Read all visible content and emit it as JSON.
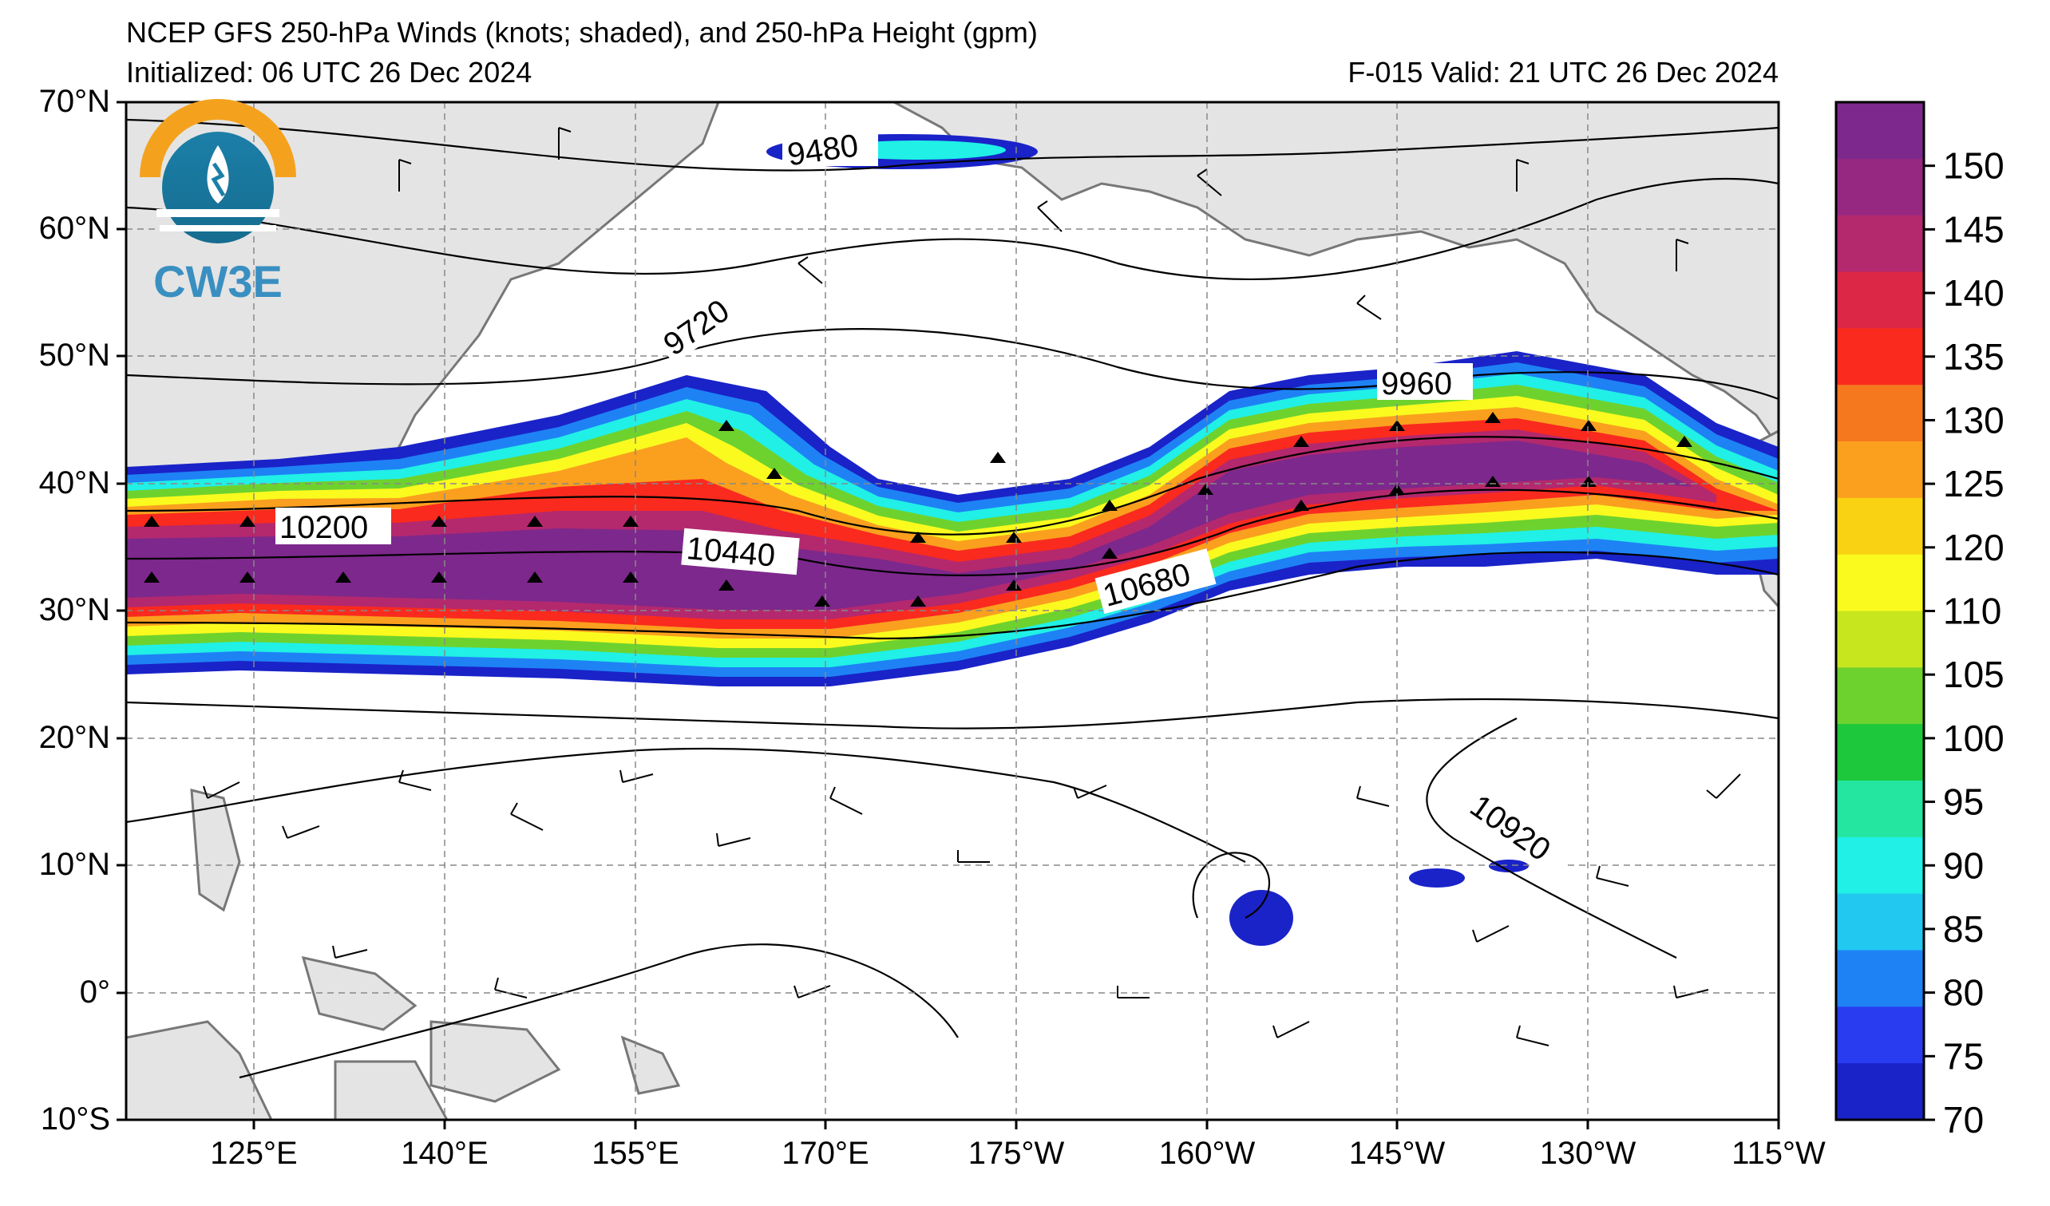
{
  "header": {
    "title": "NCEP GFS 250-hPa Winds (knots; shaded), and 250-hPa Height (gpm)",
    "initialized": "Initialized: 06 UTC 26 Dec 2024",
    "valid": "F-015  Valid: 21 UTC 26 Dec 2024"
  },
  "logo": {
    "text": "CW3E"
  },
  "map": {
    "lat_ticks": [
      "70°N",
      "60°N",
      "50°N",
      "40°N",
      "30°N",
      "20°N",
      "10°N",
      "0°",
      "10°S"
    ],
    "lon_ticks": [
      "125°E",
      "140°E",
      "155°E",
      "170°E",
      "175°W",
      "160°W",
      "145°W",
      "130°W",
      "115°W"
    ],
    "height_labels": [
      "9480",
      "9720",
      "9960",
      "10200",
      "10440",
      "10680",
      "10920"
    ],
    "land_color": "#e4e4e4",
    "coast_color": "#777777"
  },
  "colorbar": {
    "ticks": [
      "70",
      "75",
      "80",
      "85",
      "90",
      "95",
      "100",
      "105",
      "110",
      "120",
      "125",
      "130",
      "135",
      "140",
      "145",
      "150"
    ],
    "colors": [
      "#1a23c8",
      "#2a3cf0",
      "#1e82f5",
      "#22c8f0",
      "#20f0e6",
      "#24e6a0",
      "#1ec83c",
      "#6ed22e",
      "#c8e61e",
      "#fafa1e",
      "#fad214",
      "#faa01e",
      "#f5781e",
      "#fa2a1e",
      "#dc2846",
      "#b4286e",
      "#962882",
      "#7d288c"
    ]
  }
}
